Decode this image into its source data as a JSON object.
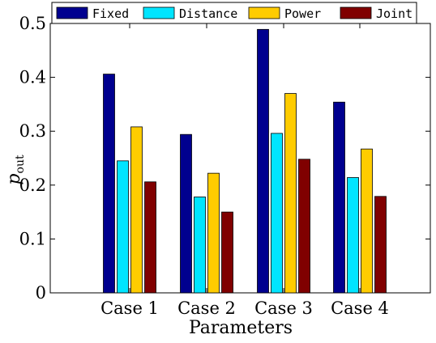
{
  "chart_data": {
    "type": "bar",
    "categories": [
      "Case 1",
      "Case 2",
      "Case 3",
      "Case 4"
    ],
    "series": [
      {
        "name": "Fixed",
        "color": "#00008f",
        "values": [
          0.406,
          0.294,
          0.489,
          0.354
        ]
      },
      {
        "name": "Distance",
        "color": "#00e5ff",
        "values": [
          0.245,
          0.178,
          0.296,
          0.214
        ]
      },
      {
        "name": "Power",
        "color": "#ffcc00",
        "values": [
          0.308,
          0.222,
          0.37,
          0.267
        ]
      },
      {
        "name": "Joint",
        "color": "#800000",
        "values": [
          0.206,
          0.15,
          0.248,
          0.179
        ]
      }
    ],
    "title": "",
    "xlabel": "Parameters",
    "ylabel_main": "p",
    "ylabel_sub": "out",
    "ylim": [
      0,
      0.5
    ],
    "yticks": [
      "0",
      "0.1",
      "0.2",
      "0.3",
      "0.4",
      "0.5"
    ],
    "legend_position": "top",
    "grid": false
  }
}
